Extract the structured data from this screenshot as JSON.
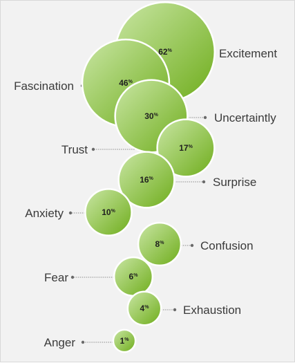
{
  "chart_data": {
    "type": "bubble",
    "unit_label": "%",
    "categories": [
      "Excitement",
      "Fascination",
      "Uncertaintly",
      "Trust",
      "Surprise",
      "Anxiety",
      "Confusion",
      "Fear",
      "Exhaustion",
      "Anger"
    ],
    "values": [
      62,
      46,
      30,
      17,
      16,
      10,
      8,
      6,
      4,
      1
    ],
    "label_side": [
      "right",
      "left",
      "right",
      "left",
      "right",
      "left",
      "right",
      "left",
      "right",
      "left"
    ],
    "colors": {
      "bubble_light": "#c9e6a4",
      "bubble_dark": "#6fad1c",
      "bubble_stroke": "#ffffff",
      "leader": "#8a8a8a",
      "label_text": "#3a3a3a",
      "value_text": "#1f1f1f",
      "background": "#f2f2f2"
    }
  }
}
